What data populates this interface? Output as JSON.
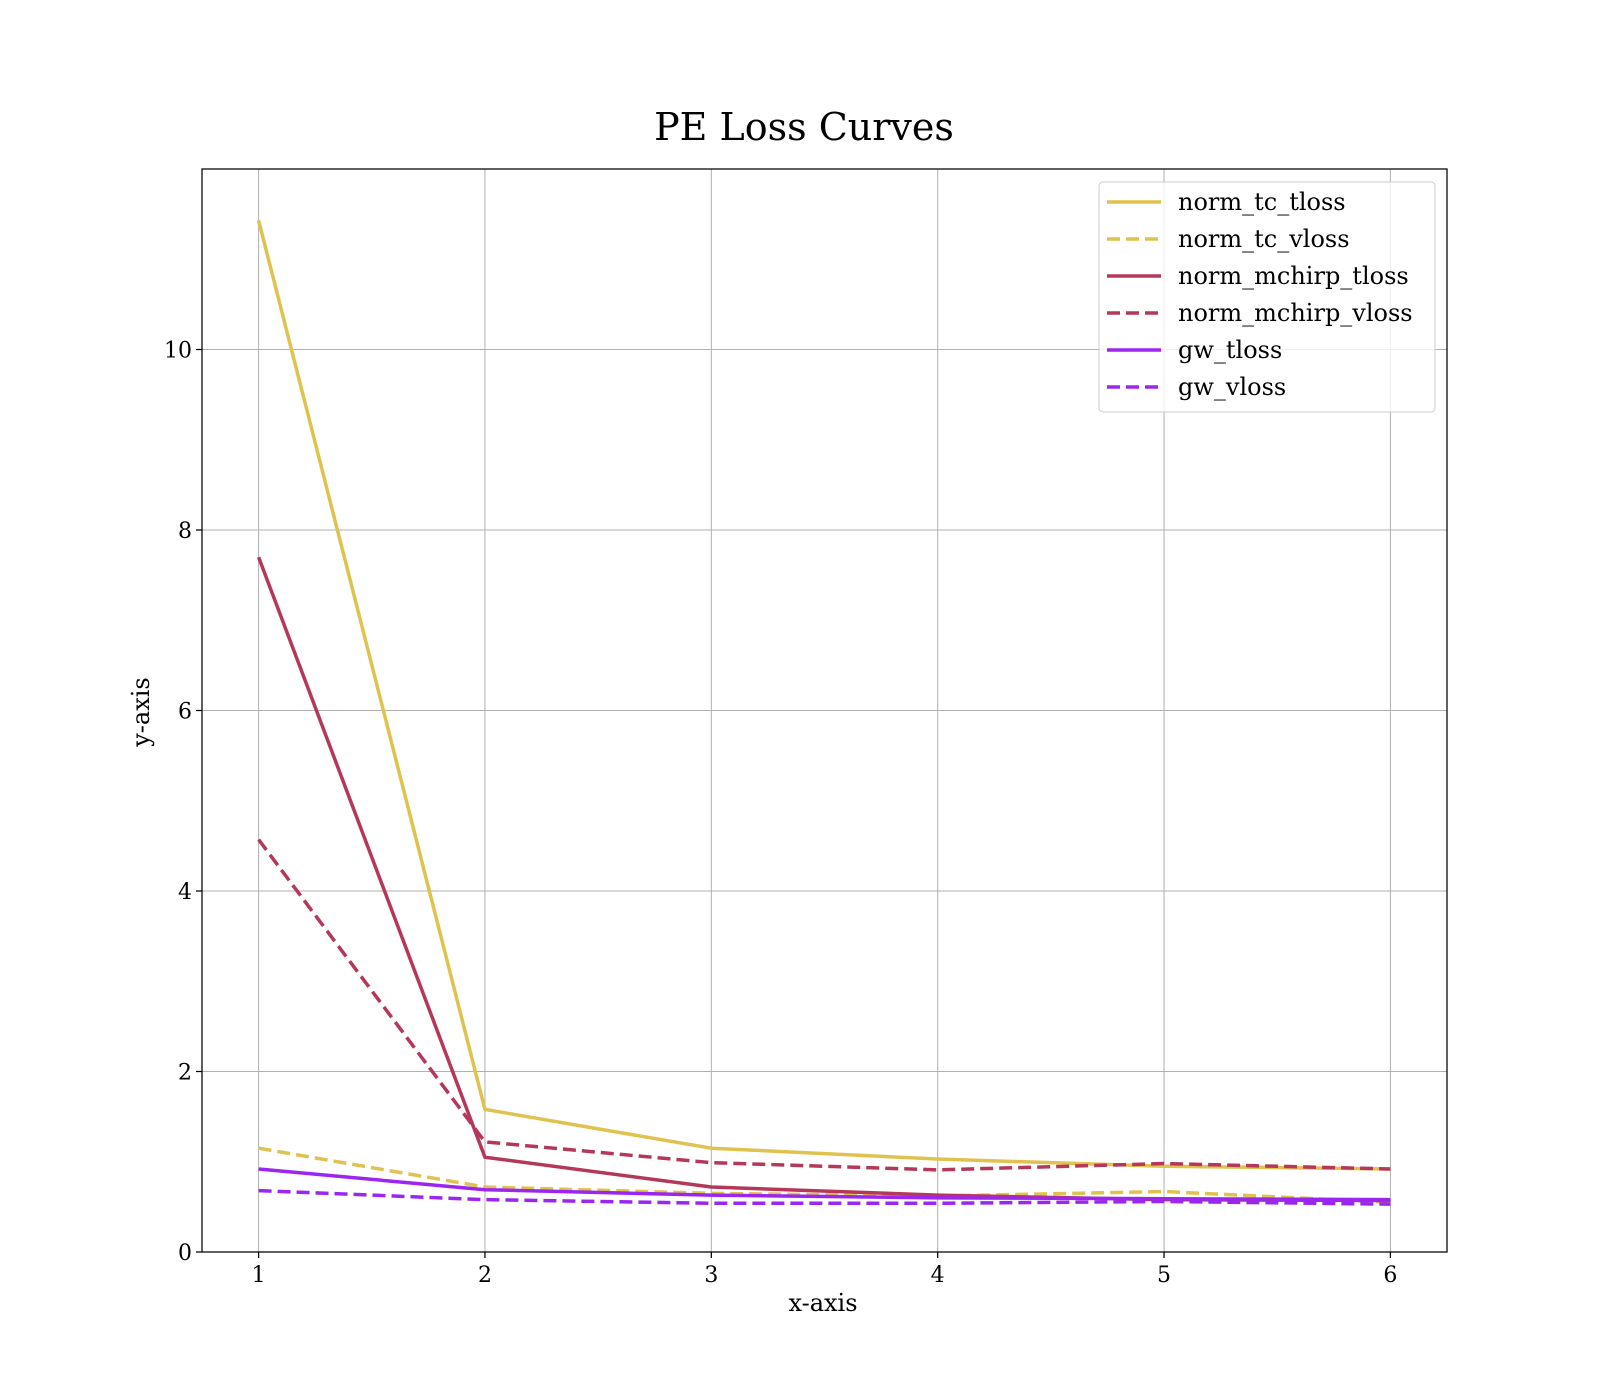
{
  "chart_data": {
    "type": "line",
    "title": "PE Loss Curves",
    "xlabel": "x-axis",
    "ylabel": "y-axis",
    "x": [
      1,
      2,
      3,
      4,
      5,
      6
    ],
    "xlim": [
      0.75,
      6.25
    ],
    "ylim": [
      0,
      12
    ],
    "xticks": [
      1,
      2,
      3,
      4,
      5,
      6
    ],
    "yticks": [
      0,
      2,
      4,
      6,
      8,
      10
    ],
    "grid": true,
    "legend_position": "top-right",
    "series": [
      {
        "name": "norm_tc_tloss",
        "color": "#E0C24F",
        "dash": "solid",
        "values": [
          11.43,
          1.58,
          1.15,
          1.03,
          0.95,
          0.92
        ]
      },
      {
        "name": "norm_tc_vloss",
        "color": "#E0C24F",
        "dash": "dashed",
        "values": [
          1.15,
          0.72,
          0.65,
          0.62,
          0.67,
          0.55
        ]
      },
      {
        "name": "norm_mchirp_tloss",
        "color": "#B5385A",
        "dash": "solid",
        "values": [
          7.7,
          1.05,
          0.72,
          0.63,
          0.58,
          0.57
        ]
      },
      {
        "name": "norm_mchirp_vloss",
        "color": "#B5385A",
        "dash": "dashed",
        "values": [
          4.57,
          1.22,
          0.99,
          0.91,
          0.98,
          0.92
        ]
      },
      {
        "name": "gw_tloss",
        "color": "#9B26F0",
        "dash": "solid",
        "values": [
          0.92,
          0.69,
          0.63,
          0.6,
          0.59,
          0.58
        ]
      },
      {
        "name": "gw_vloss",
        "color": "#9B26F0",
        "dash": "dashed",
        "values": [
          0.68,
          0.58,
          0.54,
          0.54,
          0.56,
          0.53
        ]
      }
    ]
  }
}
